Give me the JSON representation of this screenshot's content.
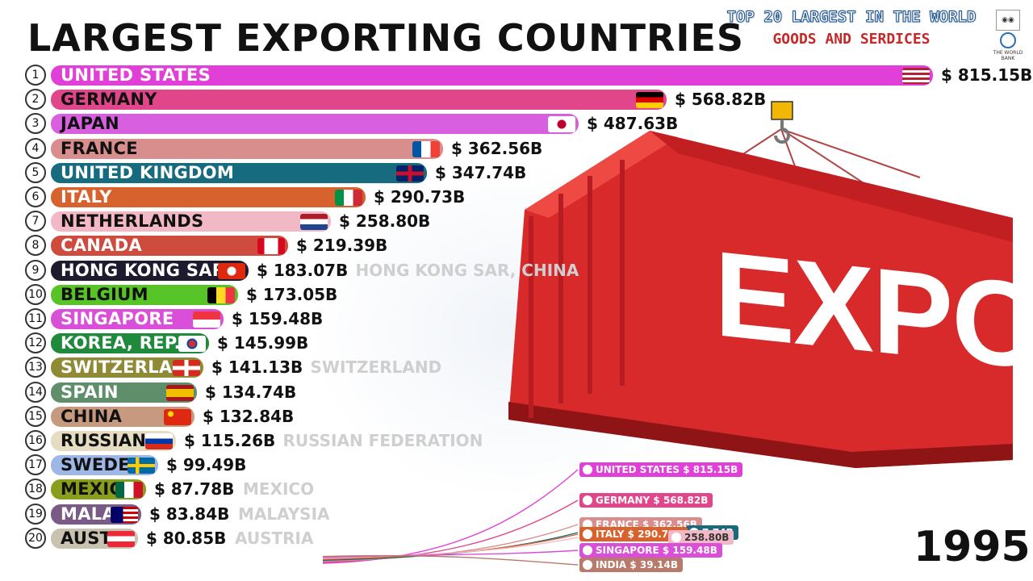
{
  "header": {
    "title": "LARGEST EXPORTING COUNTRIES",
    "brand_line1": "TOP 20 LARGEST IN THE WORLD",
    "brand_line2": "GOODS AND SERDICES",
    "logo_wb_text": "THE WORLD BANK"
  },
  "year": "1995",
  "chart_data": {
    "type": "bar",
    "orientation": "horizontal",
    "title": "LARGEST EXPORTING COUNTRIES",
    "year": "1995",
    "ranks": [
      "1",
      "2",
      "3",
      "4",
      "5",
      "6",
      "7",
      "8",
      "9",
      "10",
      "11",
      "12",
      "13",
      "14",
      "15",
      "16",
      "17",
      "18",
      "19",
      "20"
    ],
    "categories": [
      "UNITED STATES",
      "GERMANY",
      "JAPAN",
      "FRANCE",
      "UNITED KINGDOM",
      "ITALY",
      "NETHERLANDS",
      "CANADA",
      "HONG KONG SAR",
      "BELGIUM",
      "SINGAPORE",
      "KOREA, REP.",
      "SWITZERLAND",
      "SPAIN",
      "CHINA",
      "RUSSIAN",
      "SWEDEN",
      "MEXICO",
      "MALAYSIA",
      "AUSTRIA"
    ],
    "bar_labels": [
      "UNITED STATES",
      "GERMANY",
      "JAPAN",
      "FRANCE",
      "UNITED KINGDOM",
      "ITALY",
      "NETHERLANDS",
      "CANADA",
      "HONG KONG SAR",
      "BELGIUM",
      "SINGAPORE",
      "KOREA, REP.",
      "SWITZERLA",
      "SPAIN",
      "CHINA",
      "RUSSIAN",
      "SWEDE",
      "MEXIC",
      "MALA",
      "AUST"
    ],
    "values": [
      815.15,
      568.82,
      487.63,
      362.56,
      347.74,
      290.73,
      258.8,
      219.39,
      183.07,
      173.05,
      159.48,
      145.99,
      141.13,
      134.74,
      132.84,
      115.26,
      99.49,
      87.78,
      83.84,
      80.85
    ],
    "value_labels": [
      "$ 815.15B",
      "$ 568.82B",
      "$ 487.63B",
      "$ 362.56B",
      "$ 347.74B",
      "$ 290.73B",
      "$ 258.80B",
      "$ 219.39B",
      "$ 183.07B",
      "$ 173.05B",
      "$ 159.48B",
      "$ 145.99B",
      "$ 141.13B",
      "$ 134.74B",
      "$ 132.84B",
      "$ 115.26B",
      "$ 99.49B",
      "$ 87.78B",
      "$ 83.84B",
      "$ 80.85B"
    ],
    "full_names": [
      "",
      "",
      "",
      "",
      "",
      "",
      "",
      "",
      "HONG KONG SAR, CHINA",
      "",
      "",
      "",
      "SWITZERLAND",
      "",
      "",
      "RUSSIAN FEDERATION",
      "",
      "MEXICO",
      "MALAYSIA",
      "AUSTRIA"
    ],
    "colors": [
      "#e040d8",
      "#e2468a",
      "#d85fe0",
      "#d98e8e",
      "#176b7e",
      "#d8622e",
      "#f2b8c6",
      "#cf4b3d",
      "#1f1b2e",
      "#56c427",
      "#d94fd8",
      "#1f8a3b",
      "#8f8a35",
      "#5e8f6a",
      "#c79a80",
      "#e6dcc2",
      "#9fb7e6",
      "#8a9e1e",
      "#7a5a86",
      "#c9c2b0"
    ],
    "label_colors": [
      "#ffffff",
      "#111111",
      "#111111",
      "#111111",
      "#ffffff",
      "#ffffff",
      "#111111",
      "#ffffff",
      "#ffffff",
      "#111111",
      "#ffffff",
      "#ffffff",
      "#ffffff",
      "#ffffff",
      "#111111",
      "#111111",
      "#111111",
      "#111111",
      "#ffffff",
      "#111111"
    ],
    "flags": [
      "us-flag",
      "germany-flag",
      "japan-flag",
      "france-flag",
      "uk-flag",
      "italy-flag",
      "netherlands-flag",
      "canada-flag",
      "hong-kong-flag",
      "belgium-flag",
      "singapore-flag",
      "korea-flag",
      "switzerland-flag",
      "spain-flag",
      "china-flag",
      "russia-flag",
      "sweden-flag",
      "mexico-flag",
      "malaysia-flag",
      "austria-flag"
    ],
    "xlim": [
      0,
      815.15
    ],
    "mini_chart": {
      "type": "line",
      "labels": [
        "UNITED STATES $ 815.15B",
        "GERMANY $ 568.82B",
        "FRANCE $ 362.56B",
        "7.74B",
        "ITALY $ 290.73B",
        "258.80B",
        "SINGAPORE $ 159.48B",
        "INDIA $ 39.14B"
      ],
      "label_colors": [
        "#e040d8",
        "#e2468a",
        "#d98e8e",
        "#176b7e",
        "#d8622e",
        "#f2b8c6",
        "#d94fd8",
        "#b87a6a"
      ]
    }
  }
}
